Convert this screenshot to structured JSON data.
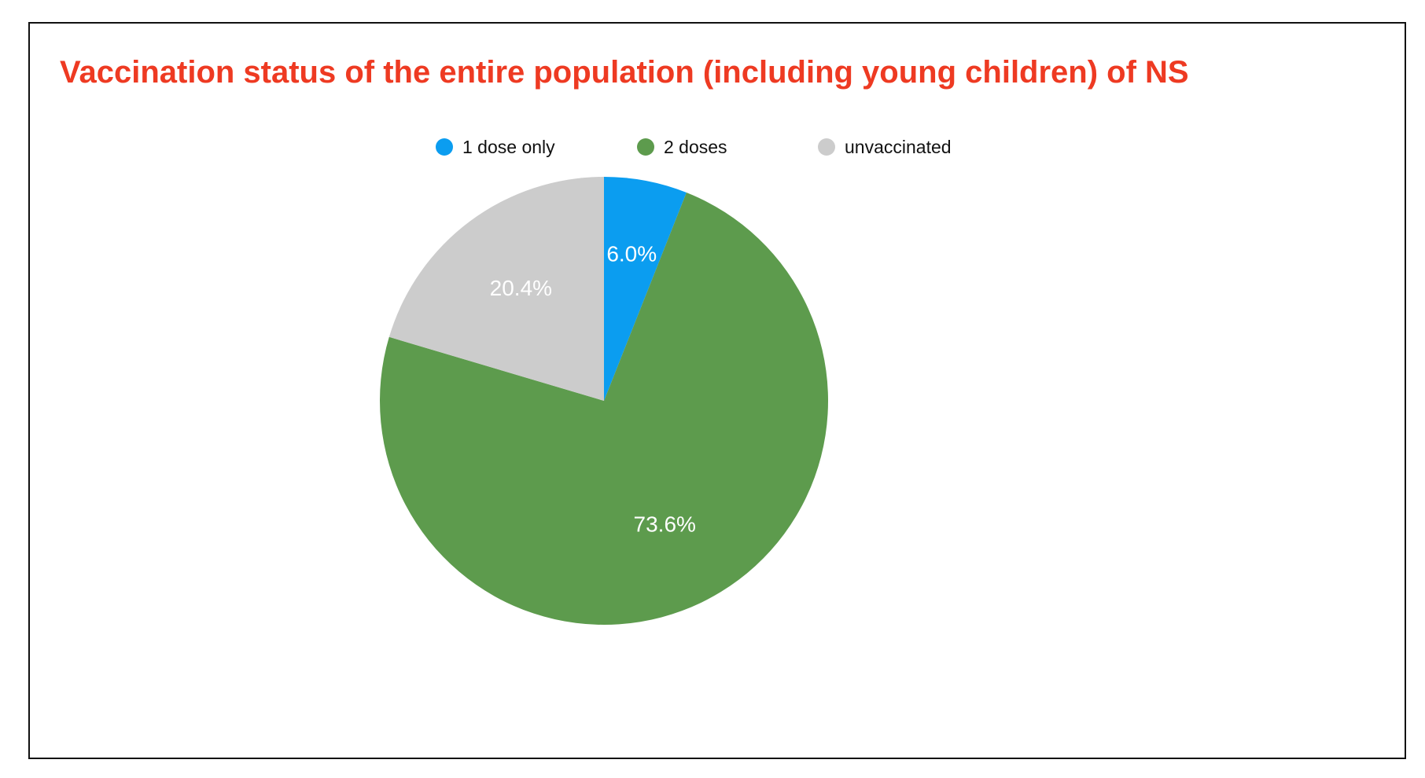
{
  "chart_data": {
    "type": "pie",
    "title": "Vaccination status of the entire population (including young children) of NS",
    "legend_position": "top-center",
    "slices": [
      {
        "label": "1 dose only",
        "value": 6.0,
        "display": "6.0%",
        "color": "#0b9df0"
      },
      {
        "label": "2 doses",
        "value": 73.6,
        "display": "73.6%",
        "color": "#5d9b4d"
      },
      {
        "label": "unvaccinated",
        "value": 20.4,
        "display": "20.4%",
        "color": "#cccccc"
      }
    ]
  },
  "colors": {
    "title": "#ee3a22",
    "frame_border": "#111111",
    "background": "#ffffff"
  }
}
